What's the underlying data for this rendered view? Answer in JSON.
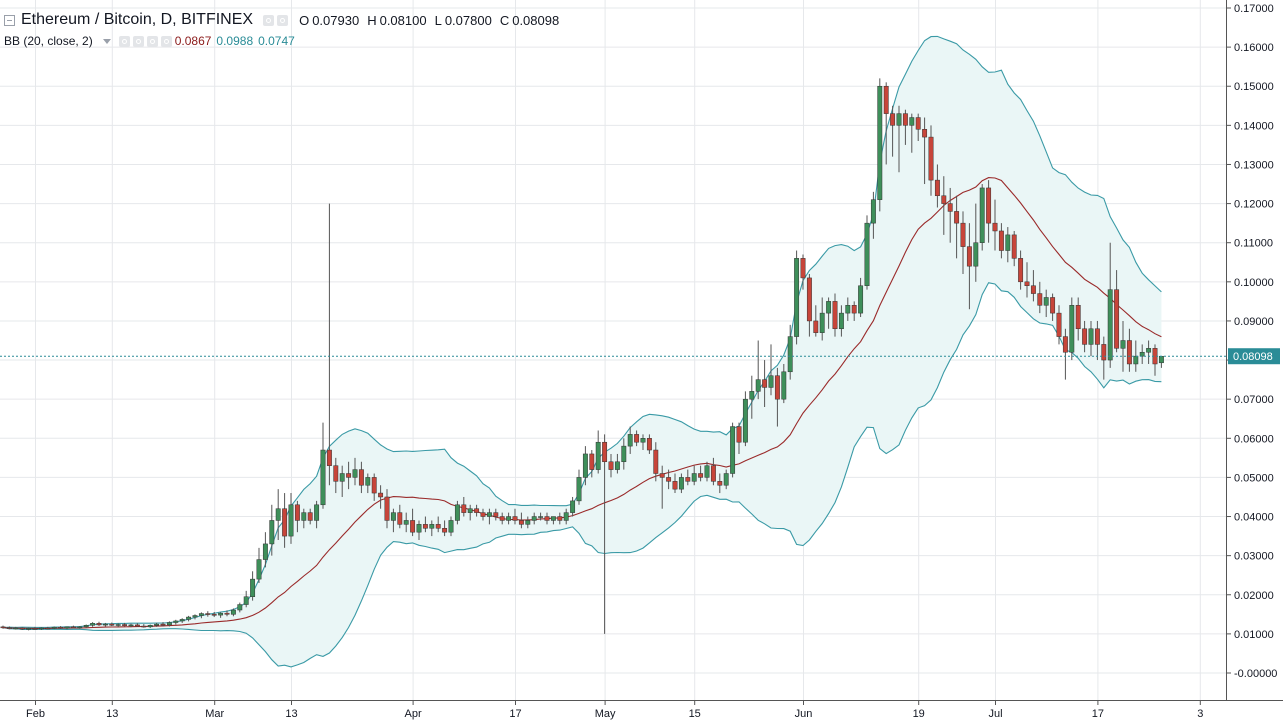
{
  "header": {
    "title": "Ethereum / Bitcoin, D, BITFINEX",
    "ohlc": [
      {
        "label": "O",
        "value": "0.07930"
      },
      {
        "label": "H",
        "value": "0.08100"
      },
      {
        "label": "L",
        "value": "0.07800"
      },
      {
        "label": "C",
        "value": "0.08098"
      }
    ]
  },
  "indicator": {
    "name": "BB (20, close, 2)",
    "values": [
      "0.0867",
      "0.0988",
      "0.0747"
    ],
    "colors": [
      "#8b1a1a",
      "#2a8c97",
      "#2a8c97"
    ]
  },
  "colors": {
    "up": "#3e8f5a",
    "down": "#c7453a",
    "basis": "#9a2a2a",
    "band": "#3a9aa6",
    "band_fill": "#eaf6f6",
    "grid": "#e6e8eb",
    "current_price": "#2a8c97"
  },
  "chart_data": {
    "type": "candlestick",
    "symbol": "Ethereum / Bitcoin",
    "interval": "D",
    "exchange": "BITFINEX",
    "ylim": [
      -0.003,
      0.17
    ],
    "y_ticks": [
      0.17,
      0.16,
      0.15,
      0.14,
      0.13,
      0.12,
      0.11,
      0.1,
      0.09,
      0.08,
      0.07,
      0.06,
      0.05,
      0.04,
      0.03,
      0.02,
      0.01,
      0.0
    ],
    "y_tick_labels": [
      "0.17000",
      "0.16000",
      "0.15000",
      "0.14000",
      "0.13000",
      "0.12000",
      "0.11000",
      "0.10000",
      "0.09000",
      "0.08000",
      "0.07000",
      "0.06000",
      "0.05000",
      "0.04000",
      "0.03000",
      "0.02000",
      "0.01000",
      "-0.00000"
    ],
    "x_tick_labels": [
      {
        "day": 5,
        "label": "Feb"
      },
      {
        "day": 17,
        "label": "13"
      },
      {
        "day": 33,
        "label": "Mar"
      },
      {
        "day": 45,
        "label": "13"
      },
      {
        "day": 64,
        "label": "Apr"
      },
      {
        "day": 80,
        "label": "17"
      },
      {
        "day": 94,
        "label": "May"
      },
      {
        "day": 108,
        "label": "15"
      },
      {
        "day": 125,
        "label": "Jun"
      },
      {
        "day": 143,
        "label": "19"
      },
      {
        "day": 155,
        "label": "Jul"
      },
      {
        "day": 171,
        "label": "17"
      },
      {
        "day": 187,
        "label": "3"
      }
    ],
    "current_price": 0.08098,
    "current_price_label": "0.08098",
    "candles": [
      [
        0.0118,
        0.0121,
        0.0113,
        0.0116
      ],
      [
        0.0116,
        0.0119,
        0.0112,
        0.0114
      ],
      [
        0.0114,
        0.0118,
        0.0111,
        0.0115
      ],
      [
        0.0115,
        0.0117,
        0.011,
        0.0112
      ],
      [
        0.0112,
        0.0116,
        0.0109,
        0.0114
      ],
      [
        0.0114,
        0.0118,
        0.0111,
        0.0113
      ],
      [
        0.0113,
        0.0117,
        0.011,
        0.0115
      ],
      [
        0.0115,
        0.0118,
        0.0112,
        0.0114
      ],
      [
        0.0114,
        0.0119,
        0.0112,
        0.0117
      ],
      [
        0.0117,
        0.012,
        0.0113,
        0.0115
      ],
      [
        0.0115,
        0.0119,
        0.0112,
        0.0118
      ],
      [
        0.0118,
        0.0121,
        0.0114,
        0.0116
      ],
      [
        0.0116,
        0.012,
        0.0113,
        0.0118
      ],
      [
        0.0118,
        0.0124,
        0.0115,
        0.0122
      ],
      [
        0.0122,
        0.013,
        0.0118,
        0.0127
      ],
      [
        0.0127,
        0.0131,
        0.012,
        0.0123
      ],
      [
        0.0123,
        0.0128,
        0.0119,
        0.0125
      ],
      [
        0.0125,
        0.0129,
        0.012,
        0.0122
      ],
      [
        0.0122,
        0.0127,
        0.0118,
        0.0124
      ],
      [
        0.0124,
        0.0128,
        0.0119,
        0.0121
      ],
      [
        0.0121,
        0.0126,
        0.0117,
        0.0123
      ],
      [
        0.0123,
        0.0127,
        0.0118,
        0.012
      ],
      [
        0.012,
        0.0125,
        0.0116,
        0.0118
      ],
      [
        0.0118,
        0.0124,
        0.0115,
        0.0122
      ],
      [
        0.0122,
        0.0128,
        0.0118,
        0.0125
      ],
      [
        0.0125,
        0.013,
        0.012,
        0.0123
      ],
      [
        0.0123,
        0.0132,
        0.0119,
        0.0129
      ],
      [
        0.0129,
        0.0136,
        0.0124,
        0.0133
      ],
      [
        0.0133,
        0.014,
        0.0128,
        0.0137
      ],
      [
        0.0137,
        0.0146,
        0.0132,
        0.0143
      ],
      [
        0.0143,
        0.015,
        0.0137,
        0.0147
      ],
      [
        0.0147,
        0.0155,
        0.014,
        0.0152
      ],
      [
        0.0152,
        0.0158,
        0.0144,
        0.015
      ],
      [
        0.015,
        0.0156,
        0.0143,
        0.0148
      ],
      [
        0.0148,
        0.0155,
        0.0141,
        0.0153
      ],
      [
        0.0153,
        0.016,
        0.0145,
        0.015
      ],
      [
        0.015,
        0.0165,
        0.0145,
        0.0161
      ],
      [
        0.0161,
        0.018,
        0.0155,
        0.0175
      ],
      [
        0.0175,
        0.021,
        0.0168,
        0.0195
      ],
      [
        0.0195,
        0.026,
        0.0185,
        0.024
      ],
      [
        0.024,
        0.032,
        0.023,
        0.029
      ],
      [
        0.029,
        0.036,
        0.027,
        0.033
      ],
      [
        0.033,
        0.043,
        0.03,
        0.039
      ],
      [
        0.039,
        0.047,
        0.034,
        0.042
      ],
      [
        0.042,
        0.046,
        0.032,
        0.035
      ],
      [
        0.035,
        0.046,
        0.033,
        0.043
      ],
      [
        0.043,
        0.044,
        0.036,
        0.039
      ],
      [
        0.039,
        0.042,
        0.037,
        0.041
      ],
      [
        0.041,
        0.042,
        0.038,
        0.039
      ],
      [
        0.039,
        0.044,
        0.037,
        0.043
      ],
      [
        0.043,
        0.064,
        0.042,
        0.057
      ],
      [
        0.057,
        0.12,
        0.048,
        0.053
      ],
      [
        0.053,
        0.055,
        0.046,
        0.049
      ],
      [
        0.049,
        0.053,
        0.045,
        0.051
      ],
      [
        0.051,
        0.054,
        0.047,
        0.05
      ],
      [
        0.05,
        0.055,
        0.048,
        0.052
      ],
      [
        0.052,
        0.054,
        0.046,
        0.048
      ],
      [
        0.048,
        0.051,
        0.046,
        0.05
      ],
      [
        0.05,
        0.051,
        0.044,
        0.046
      ],
      [
        0.046,
        0.048,
        0.042,
        0.045
      ],
      [
        0.045,
        0.047,
        0.037,
        0.039
      ],
      [
        0.039,
        0.042,
        0.036,
        0.041
      ],
      [
        0.041,
        0.043,
        0.037,
        0.038
      ],
      [
        0.038,
        0.041,
        0.036,
        0.039
      ],
      [
        0.039,
        0.042,
        0.035,
        0.036
      ],
      [
        0.036,
        0.039,
        0.034,
        0.038
      ],
      [
        0.038,
        0.04,
        0.036,
        0.037
      ],
      [
        0.037,
        0.039,
        0.035,
        0.038
      ],
      [
        0.038,
        0.04,
        0.036,
        0.037
      ],
      [
        0.037,
        0.039,
        0.035,
        0.036
      ],
      [
        0.036,
        0.04,
        0.035,
        0.039
      ],
      [
        0.039,
        0.044,
        0.038,
        0.043
      ],
      [
        0.043,
        0.045,
        0.04,
        0.041
      ],
      [
        0.041,
        0.043,
        0.039,
        0.042
      ],
      [
        0.042,
        0.043,
        0.04,
        0.041
      ],
      [
        0.041,
        0.042,
        0.039,
        0.04
      ],
      [
        0.04,
        0.042,
        0.038,
        0.041
      ],
      [
        0.041,
        0.042,
        0.039,
        0.04
      ],
      [
        0.04,
        0.041,
        0.038,
        0.039
      ],
      [
        0.039,
        0.041,
        0.038,
        0.04
      ],
      [
        0.04,
        0.042,
        0.038,
        0.039
      ],
      [
        0.039,
        0.041,
        0.037,
        0.038
      ],
      [
        0.038,
        0.04,
        0.037,
        0.039
      ],
      [
        0.039,
        0.041,
        0.038,
        0.04
      ],
      [
        0.04,
        0.041,
        0.039,
        0.04
      ],
      [
        0.04,
        0.041,
        0.038,
        0.039
      ],
      [
        0.039,
        0.04,
        0.038,
        0.04
      ],
      [
        0.04,
        0.041,
        0.038,
        0.039
      ],
      [
        0.039,
        0.042,
        0.038,
        0.041
      ],
      [
        0.041,
        0.045,
        0.04,
        0.044
      ],
      [
        0.044,
        0.052,
        0.043,
        0.05
      ],
      [
        0.05,
        0.058,
        0.048,
        0.056
      ],
      [
        0.056,
        0.057,
        0.05,
        0.052
      ],
      [
        0.052,
        0.062,
        0.051,
        0.059
      ],
      [
        0.059,
        0.061,
        0.01,
        0.054
      ],
      [
        0.054,
        0.056,
        0.05,
        0.052
      ],
      [
        0.052,
        0.056,
        0.051,
        0.054
      ],
      [
        0.054,
        0.06,
        0.052,
        0.058
      ],
      [
        0.058,
        0.063,
        0.056,
        0.061
      ],
      [
        0.061,
        0.062,
        0.058,
        0.059
      ],
      [
        0.059,
        0.061,
        0.057,
        0.06
      ],
      [
        0.06,
        0.061,
        0.056,
        0.057
      ],
      [
        0.057,
        0.059,
        0.049,
        0.051
      ],
      [
        0.051,
        0.053,
        0.042,
        0.05
      ],
      [
        0.05,
        0.052,
        0.047,
        0.049
      ],
      [
        0.049,
        0.051,
        0.046,
        0.047
      ],
      [
        0.047,
        0.051,
        0.046,
        0.05
      ],
      [
        0.05,
        0.052,
        0.048,
        0.049
      ],
      [
        0.049,
        0.053,
        0.048,
        0.051
      ],
      [
        0.051,
        0.053,
        0.049,
        0.05
      ],
      [
        0.05,
        0.054,
        0.049,
        0.053
      ],
      [
        0.053,
        0.055,
        0.048,
        0.049
      ],
      [
        0.049,
        0.051,
        0.046,
        0.048
      ],
      [
        0.048,
        0.052,
        0.047,
        0.051
      ],
      [
        0.051,
        0.064,
        0.05,
        0.063
      ],
      [
        0.063,
        0.064,
        0.056,
        0.059
      ],
      [
        0.059,
        0.072,
        0.058,
        0.07
      ],
      [
        0.07,
        0.076,
        0.065,
        0.072
      ],
      [
        0.072,
        0.085,
        0.07,
        0.075
      ],
      [
        0.075,
        0.08,
        0.068,
        0.073
      ],
      [
        0.073,
        0.084,
        0.071,
        0.076
      ],
      [
        0.076,
        0.078,
        0.063,
        0.07
      ],
      [
        0.07,
        0.079,
        0.069,
        0.077
      ],
      [
        0.077,
        0.089,
        0.075,
        0.086
      ],
      [
        0.086,
        0.108,
        0.084,
        0.106
      ],
      [
        0.106,
        0.107,
        0.098,
        0.101
      ],
      [
        0.101,
        0.102,
        0.086,
        0.09
      ],
      [
        0.09,
        0.094,
        0.086,
        0.087
      ],
      [
        0.087,
        0.096,
        0.085,
        0.092
      ],
      [
        0.092,
        0.096,
        0.088,
        0.095
      ],
      [
        0.095,
        0.097,
        0.086,
        0.088
      ],
      [
        0.088,
        0.094,
        0.086,
        0.092
      ],
      [
        0.092,
        0.096,
        0.09,
        0.094
      ],
      [
        0.094,
        0.095,
        0.09,
        0.092
      ],
      [
        0.092,
        0.101,
        0.091,
        0.099
      ],
      [
        0.099,
        0.117,
        0.098,
        0.115
      ],
      [
        0.115,
        0.123,
        0.111,
        0.121
      ],
      [
        0.121,
        0.152,
        0.118,
        0.15
      ],
      [
        0.15,
        0.151,
        0.13,
        0.143
      ],
      [
        0.143,
        0.145,
        0.132,
        0.14
      ],
      [
        0.14,
        0.145,
        0.128,
        0.143
      ],
      [
        0.143,
        0.144,
        0.135,
        0.14
      ],
      [
        0.14,
        0.143,
        0.133,
        0.142
      ],
      [
        0.142,
        0.143,
        0.136,
        0.139
      ],
      [
        0.139,
        0.142,
        0.125,
        0.137
      ],
      [
        0.137,
        0.14,
        0.122,
        0.126
      ],
      [
        0.126,
        0.13,
        0.119,
        0.122
      ],
      [
        0.122,
        0.127,
        0.112,
        0.12
      ],
      [
        0.12,
        0.124,
        0.11,
        0.118
      ],
      [
        0.118,
        0.122,
        0.106,
        0.115
      ],
      [
        0.115,
        0.118,
        0.102,
        0.109
      ],
      [
        0.109,
        0.115,
        0.093,
        0.104
      ],
      [
        0.104,
        0.12,
        0.1,
        0.11
      ],
      [
        0.11,
        0.125,
        0.108,
        0.124
      ],
      [
        0.124,
        0.126,
        0.11,
        0.115
      ],
      [
        0.115,
        0.121,
        0.108,
        0.113
      ],
      [
        0.113,
        0.115,
        0.106,
        0.108
      ],
      [
        0.108,
        0.114,
        0.105,
        0.112
      ],
      [
        0.112,
        0.113,
        0.104,
        0.106
      ],
      [
        0.106,
        0.108,
        0.098,
        0.1
      ],
      [
        0.1,
        0.105,
        0.096,
        0.099
      ],
      [
        0.099,
        0.103,
        0.095,
        0.097
      ],
      [
        0.097,
        0.1,
        0.092,
        0.094
      ],
      [
        0.094,
        0.098,
        0.091,
        0.096
      ],
      [
        0.096,
        0.097,
        0.09,
        0.092
      ],
      [
        0.092,
        0.094,
        0.084,
        0.086
      ],
      [
        0.086,
        0.088,
        0.075,
        0.082
      ],
      [
        0.082,
        0.096,
        0.08,
        0.094
      ],
      [
        0.094,
        0.096,
        0.085,
        0.088
      ],
      [
        0.088,
        0.09,
        0.082,
        0.084
      ],
      [
        0.084,
        0.09,
        0.081,
        0.088
      ],
      [
        0.088,
        0.09,
        0.08,
        0.084
      ],
      [
        0.084,
        0.086,
        0.075,
        0.08
      ],
      [
        0.08,
        0.11,
        0.078,
        0.098
      ],
      [
        0.098,
        0.103,
        0.082,
        0.083
      ],
      [
        0.083,
        0.09,
        0.077,
        0.085
      ],
      [
        0.085,
        0.088,
        0.077,
        0.079
      ],
      [
        0.079,
        0.085,
        0.077,
        0.081
      ],
      [
        0.081,
        0.084,
        0.079,
        0.082
      ],
      [
        0.082,
        0.085,
        0.079,
        0.083
      ],
      [
        0.083,
        0.084,
        0.076,
        0.079
      ],
      [
        0.0793,
        0.081,
        0.078,
        0.08098
      ]
    ]
  }
}
